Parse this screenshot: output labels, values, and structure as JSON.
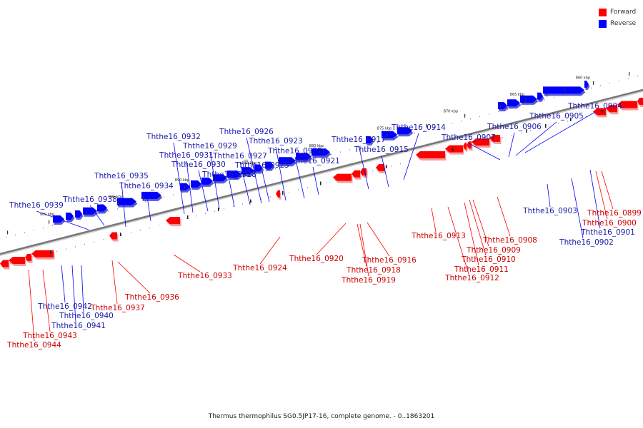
{
  "colors": {
    "forward": "#ff0000",
    "reverse": "#0000ff",
    "forward_label": "#cc0000",
    "reverse_label": "#1a1aaa",
    "backbone": "#777777"
  },
  "legend": {
    "forward": "Forward",
    "reverse": "Reverse"
  },
  "caption": "Thermus thermophilus SG0.5JP17-16, complete genome. - 0..1863201",
  "ticks": [
    "900 kbp",
    "895 kbp",
    "890 kbp",
    "885 kbp",
    "880 kbp",
    "875 kbp",
    "870 kbp",
    "865 kbp",
    "860 kbp"
  ],
  "reverse_genes": [
    "Ththe16_0939",
    "Ththe16_0938",
    "Ththe16_0935",
    "Ththe16_0934",
    "Ththe16_0932",
    "Ththe16_0931",
    "Ththe16_0930",
    "Ththe16_0929",
    "Ththe16_0928",
    "Ththe16_0927",
    "Ththe16_0926",
    "Ththe16_0925",
    "Ththe16_0923",
    "Ththe16_0922",
    "Ththe16_0921",
    "Ththe16_0917",
    "Ththe16_0915",
    "Ththe16_0914",
    "Ththe16_0907",
    "Ththe16_0906",
    "Ththe16_0905",
    "Ththe16_0904",
    "Ththe16_0903",
    "Ththe16_0902",
    "Ththe16_0901",
    "Ththe16_0942",
    "Ththe16_0940",
    "Ththe16_0941"
  ],
  "forward_genes": [
    "Ththe16_0933",
    "Ththe16_0924",
    "Ththe16_0920",
    "Ththe16_0916",
    "Ththe16_0918",
    "Ththe16_0919",
    "Ththe16_0913",
    "Ththe16_0908",
    "Ththe16_0909",
    "Ththe16_0910",
    "Ththe16_0911",
    "Ththe16_0912",
    "Ththe16_0899",
    "Ththe16_0900",
    "Ththe16_0936",
    "Ththe16_0937",
    "Ththe16_0943",
    "Ththe16_0944"
  ]
}
